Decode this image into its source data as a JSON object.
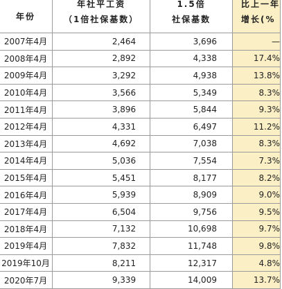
{
  "table": {
    "headers": {
      "year": "年份",
      "wage_line1": "年社平工资",
      "wage_line2": "（1倍社保基数）",
      "base15_line1": "1.5倍",
      "base15_line2": "社保基数",
      "growth_line1": "比上一年",
      "growth_line2": "增长(%"
    },
    "rows": [
      {
        "year": "2007年4月",
        "wage": "2,464",
        "base15": "3,696",
        "growth": "—"
      },
      {
        "year": "2008年4月",
        "wage": "2,892",
        "base15": "4,338",
        "growth": "17.4%"
      },
      {
        "year": "2009年4月",
        "wage": "3,292",
        "base15": "4,938",
        "growth": "13.8%"
      },
      {
        "year": "2010年4月",
        "wage": "3,566",
        "base15": "5,349",
        "growth": "8.3%"
      },
      {
        "year": "2011年4月",
        "wage": "3,896",
        "base15": "5,844",
        "growth": "9.3%"
      },
      {
        "year": "2012年4月",
        "wage": "4,331",
        "base15": "6,497",
        "growth": "11.2%"
      },
      {
        "year": "2013年4月",
        "wage": "4,692",
        "base15": "7,038",
        "growth": "8.3%"
      },
      {
        "year": "2014年4月",
        "wage": "5,036",
        "base15": "7,554",
        "growth": "7.3%"
      },
      {
        "year": "2015年4月",
        "wage": "5,451",
        "base15": "8,177",
        "growth": "8.2%"
      },
      {
        "year": "2016年4月",
        "wage": "5,939",
        "base15": "8,909",
        "growth": "9.0%"
      },
      {
        "year": "2017年4月",
        "wage": "6,504",
        "base15": "9,756",
        "growth": "9.5%"
      },
      {
        "year": "2018年4月",
        "wage": "7,132",
        "base15": "10,698",
        "growth": "9.7%"
      },
      {
        "year": "2019年4月",
        "wage": "7,832",
        "base15": "11,748",
        "growth": "9.8%"
      },
      {
        "year": "2019年10月",
        "wage": "8,211",
        "base15": "12,317",
        "growth": "4.8%"
      },
      {
        "year": "2020年7月",
        "wage": "9,339",
        "base15": "14,009",
        "growth": "13.7%"
      }
    ]
  },
  "colors": {
    "highlight_column": "#fbefc5",
    "border": "#9a9a9a",
    "text": "#222222"
  }
}
